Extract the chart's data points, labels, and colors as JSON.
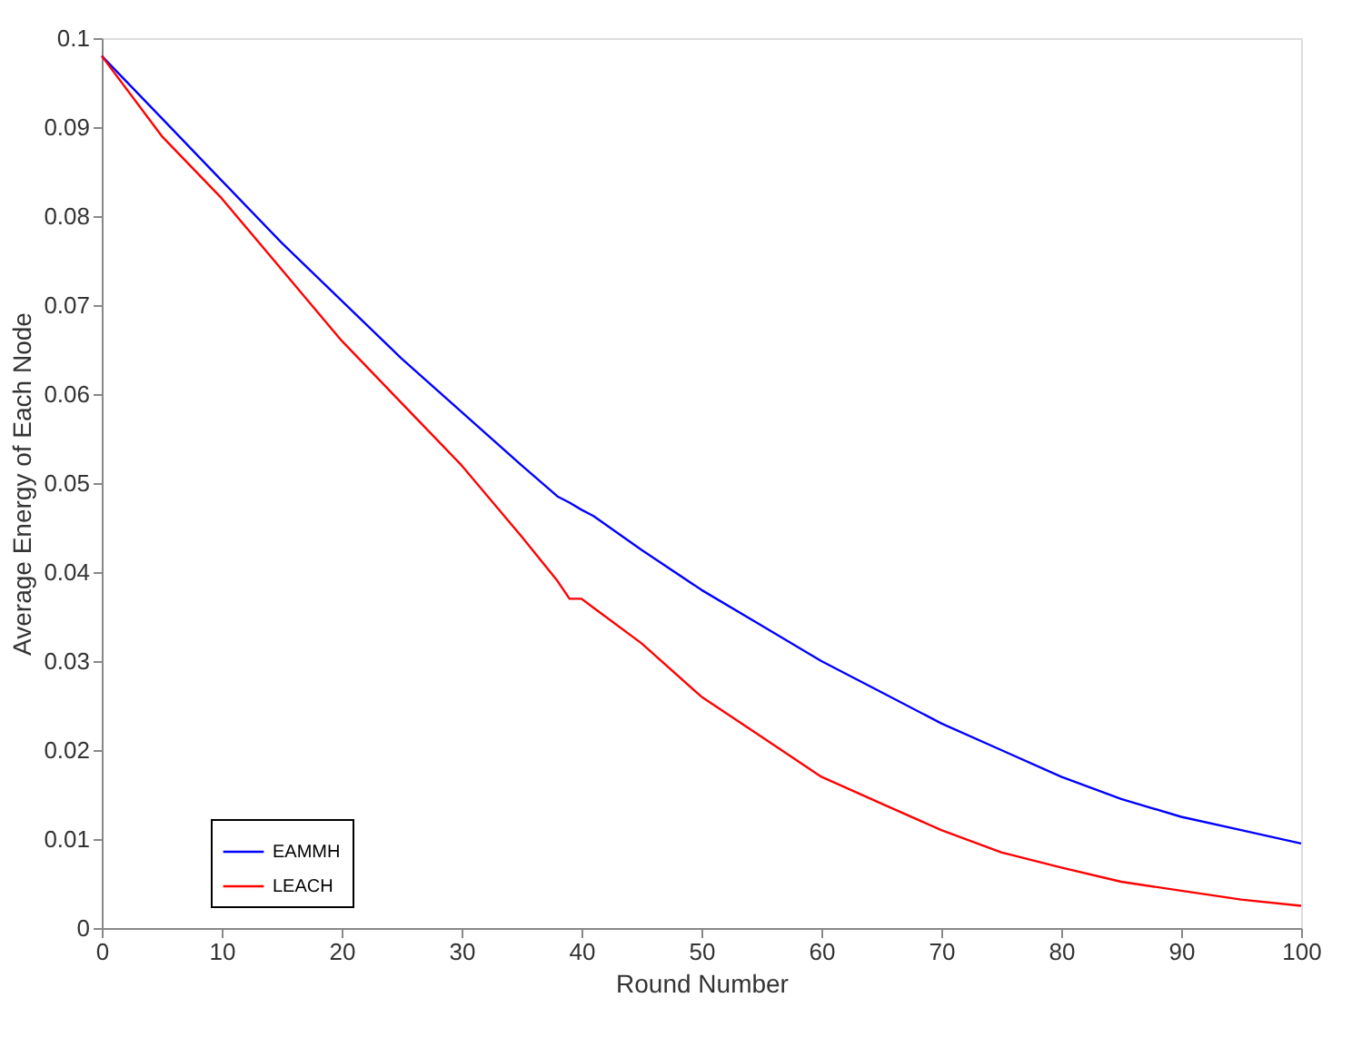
{
  "chart_data": {
    "type": "line",
    "xlabel": "Round Number",
    "ylabel": "Average Energy of Each Node",
    "x": [
      0,
      5,
      10,
      15,
      20,
      25,
      30,
      35,
      38,
      39,
      40,
      41,
      45,
      50,
      55,
      60,
      65,
      70,
      75,
      80,
      85,
      90,
      95,
      100
    ],
    "series": [
      {
        "name": "EAMMH",
        "color": "#0000ff",
        "values": [
          0.098,
          0.091,
          0.084,
          0.077,
          0.0705,
          0.064,
          0.058,
          0.052,
          0.0485,
          0.0478,
          0.047,
          0.0463,
          0.0425,
          0.038,
          0.034,
          0.03,
          0.0265,
          0.023,
          0.02,
          0.017,
          0.0145,
          0.0125,
          0.011,
          0.0095
        ]
      },
      {
        "name": "LEACH",
        "color": "#ff0000",
        "values": [
          0.098,
          0.089,
          0.082,
          0.074,
          0.066,
          0.059,
          0.052,
          0.044,
          0.039,
          0.037,
          0.037,
          0.036,
          0.032,
          0.026,
          0.0215,
          0.017,
          0.014,
          0.011,
          0.0085,
          0.0068,
          0.0052,
          0.0042,
          0.0032,
          0.0025
        ]
      }
    ],
    "xlim": [
      0,
      100
    ],
    "xticks": [
      0,
      10,
      20,
      30,
      40,
      50,
      60,
      70,
      80,
      90,
      100
    ],
    "ylim": [
      0,
      0.1
    ],
    "yticks": [
      0,
      0.01,
      0.02,
      0.03,
      0.04,
      0.05,
      0.06,
      0.07,
      0.08,
      0.09,
      0.1
    ],
    "grid": false,
    "legend": "bottom left",
    "marker": "none",
    "line_style": "solid"
  }
}
